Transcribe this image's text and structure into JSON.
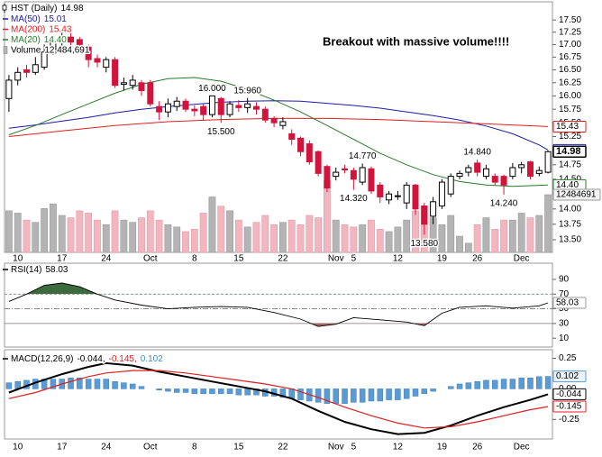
{
  "chart_data": {
    "type": "candlestick",
    "symbol_label": "HST (Daily)",
    "annotation": "Breakout with massive volume!!!!",
    "categories": [
      null,
      "10",
      null,
      null,
      null,
      null,
      "17",
      null,
      null,
      null,
      null,
      "24",
      null,
      null,
      null,
      null,
      "Oct",
      null,
      null,
      null,
      null,
      "8",
      null,
      null,
      null,
      null,
      "15",
      null,
      null,
      null,
      null,
      "22",
      null,
      null,
      null,
      null,
      null,
      "Nov",
      null,
      "5",
      null,
      null,
      null,
      null,
      "12",
      null,
      null,
      null,
      null,
      "19",
      null,
      null,
      null,
      "26",
      null,
      null,
      null,
      null,
      "Dec",
      null,
      null,
      null
    ],
    "open": [
      15.95,
      16.3,
      16.5,
      16.45,
      16.55,
      16.85,
      17.05,
      17.15,
      17.1,
      16.95,
      16.72,
      16.55,
      16.7,
      16.22,
      16.2,
      16.25,
      16.25,
      15.8,
      15.7,
      15.8,
      15.9,
      15.75,
      15.8,
      15.65,
      15.95,
      15.65,
      15.82,
      15.78,
      15.8,
      15.75,
      15.58,
      15.45,
      15.3,
      15.22,
      15.12,
      14.98,
      14.72,
      14.55,
      14.68,
      14.65,
      14.45,
      14.68,
      14.4,
      14.15,
      14.22,
      14.1,
      14.4,
      14.05,
      13.88,
      14.05,
      14.25,
      14.55,
      14.62,
      14.78,
      14.55,
      14.55,
      14.55,
      14.55,
      14.7,
      14.8,
      14.6,
      14.62
    ],
    "high": [
      16.4,
      16.55,
      16.6,
      16.75,
      17.0,
      17.15,
      17.3,
      17.25,
      17.15,
      17.0,
      16.8,
      16.75,
      16.75,
      16.35,
      16.4,
      16.3,
      16.3,
      15.9,
      15.95,
      15.98,
      15.95,
      15.82,
      15.85,
      16.0,
      15.98,
      15.9,
      15.92,
      15.96,
      15.88,
      15.8,
      15.62,
      15.6,
      15.38,
      15.25,
      15.18,
      15.0,
      14.75,
      14.7,
      14.75,
      14.7,
      14.77,
      14.72,
      14.45,
      14.3,
      14.3,
      14.45,
      14.42,
      14.1,
      14.2,
      14.5,
      14.6,
      14.65,
      14.75,
      14.84,
      14.75,
      14.6,
      14.58,
      14.78,
      14.8,
      14.82,
      14.72,
      15.0
    ],
    "low": [
      15.7,
      16.2,
      16.35,
      16.4,
      16.5,
      16.8,
      16.95,
      16.95,
      16.95,
      16.55,
      16.55,
      16.45,
      16.15,
      16.1,
      16.12,
      16.0,
      15.8,
      15.55,
      15.6,
      15.72,
      15.7,
      15.62,
      15.55,
      15.6,
      15.5,
      15.6,
      15.7,
      15.68,
      15.65,
      15.5,
      15.42,
      15.38,
      15.1,
      14.9,
      14.75,
      14.55,
      14.28,
      14.48,
      14.6,
      14.32,
      14.4,
      14.25,
      14.1,
      14.08,
      14.15,
      14.0,
      13.9,
      13.58,
      13.75,
      14.0,
      14.2,
      14.5,
      14.55,
      14.55,
      14.5,
      14.4,
      14.24,
      14.5,
      14.6,
      14.5,
      14.55,
      14.6
    ],
    "close": [
      16.3,
      16.45,
      16.45,
      16.6,
      16.85,
      17.05,
      17.15,
      17.05,
      17.0,
      16.7,
      16.65,
      16.7,
      16.2,
      16.25,
      16.3,
      16.1,
      15.85,
      15.7,
      15.85,
      15.9,
      15.75,
      15.72,
      15.65,
      16.0,
      15.65,
      15.85,
      15.78,
      15.85,
      15.75,
      15.55,
      15.5,
      15.52,
      15.2,
      14.98,
      14.8,
      14.6,
      14.35,
      14.62,
      14.66,
      14.5,
      14.7,
      14.3,
      14.2,
      14.25,
      14.22,
      14.4,
      14.0,
      13.75,
      14.12,
      14.45,
      14.55,
      14.6,
      14.7,
      14.62,
      14.68,
      14.45,
      14.4,
      14.7,
      14.75,
      14.55,
      14.65,
      14.98
    ],
    "up_color": "#000000",
    "down_color": "#d2143c",
    "log": true,
    "ylim": [
      13.3,
      17.88
    ],
    "yticks": [
      {
        "value": 13.5,
        "label": "13.50"
      },
      {
        "value": 13.75,
        "label": "13.75"
      },
      {
        "value": 14.0,
        "label": "14.00"
      },
      {
        "value": 14.25,
        "label": "14.25"
      },
      {
        "value": 14.5,
        "label": "14.50"
      },
      {
        "value": 14.75,
        "label": "14.75"
      },
      {
        "value": 15.0,
        "label": "15.00"
      },
      {
        "value": 15.25,
        "label": "15.25"
      },
      {
        "value": 15.5,
        "label": "15.50"
      },
      {
        "value": 15.75,
        "label": "15.75"
      },
      {
        "value": 16.0,
        "label": "16.00"
      },
      {
        "value": 16.25,
        "label": "16.25"
      },
      {
        "value": 16.5,
        "label": "16.50"
      },
      {
        "value": 16.75,
        "label": "16.75"
      },
      {
        "value": 17.0,
        "label": "17.00"
      },
      {
        "value": 17.25,
        "label": "17.25"
      },
      {
        "value": 17.5,
        "label": "17.50"
      }
    ],
    "moving_averages": [
      {
        "name": "MA(50)",
        "color": "#1c1ca8",
        "last_label": "15.01",
        "x": [
          0,
          3,
          6,
          9,
          12,
          15,
          18,
          21,
          24,
          27,
          30,
          33,
          36,
          39,
          42,
          45,
          48,
          51,
          54,
          57,
          60,
          61
        ],
        "values": [
          15.4,
          15.46,
          15.53,
          15.6,
          15.68,
          15.75,
          15.8,
          15.84,
          15.88,
          15.9,
          15.91,
          15.9,
          15.86,
          15.82,
          15.77,
          15.7,
          15.63,
          15.55,
          15.44,
          15.3,
          15.1,
          15.01
        ]
      },
      {
        "name": "MA(200)",
        "color": "#e02020",
        "last_label": "15.43",
        "x": [
          0,
          6,
          12,
          18,
          24,
          30,
          36,
          42,
          48,
          54,
          61
        ],
        "values": [
          15.25,
          15.35,
          15.45,
          15.52,
          15.56,
          15.58,
          15.58,
          15.56,
          15.52,
          15.48,
          15.43
        ]
      },
      {
        "name": "MA(20)",
        "color": "#2a7a2a",
        "last_label": "14.40",
        "x": [
          0,
          3,
          6,
          9,
          12,
          15,
          18,
          21,
          24,
          27,
          30,
          33,
          36,
          39,
          42,
          45,
          48,
          51,
          54,
          57,
          61
        ],
        "values": [
          15.28,
          15.45,
          15.65,
          15.85,
          16.05,
          16.22,
          16.33,
          16.35,
          16.28,
          16.12,
          15.92,
          15.7,
          15.45,
          15.2,
          14.95,
          14.75,
          14.58,
          14.46,
          14.4,
          14.38,
          14.4
        ]
      }
    ],
    "volume": {
      "name": "Volume",
      "last_label": "12,484,691",
      "ylim": [
        0,
        16000000
      ],
      "up_color": "#b4b4b4",
      "down_color": "#f2b6c0",
      "values": [
        9000000,
        8500000,
        7000000,
        6500000,
        9500000,
        10500000,
        8000000,
        7500000,
        9000000,
        8500000,
        7000000,
        6000000,
        9000000,
        7000000,
        6500000,
        7500000,
        9000000,
        7000000,
        6000000,
        5500000,
        4500000,
        5000000,
        8500000,
        12000000,
        10000000,
        9000000,
        7000000,
        5500000,
        6500000,
        8000000,
        6000000,
        6500000,
        7000000,
        6000000,
        8000000,
        7500000,
        15500000,
        7000000,
        6000000,
        5500000,
        6000000,
        7000000,
        5000000,
        4500000,
        5500000,
        7000000,
        9000000,
        10000000,
        7500000,
        6000000,
        8000000,
        3500000,
        2000000,
        6000000,
        7500000,
        5000000,
        7000000,
        7000000,
        8500000,
        7500000,
        8000000,
        12484691
      ]
    },
    "price_labels": [
      {
        "label": "16.000",
        "value": 16.0,
        "x": 23
      },
      {
        "label": "15.500",
        "value": 15.5,
        "x": 24
      },
      {
        "label": "15.960",
        "value": 15.96,
        "x": 27
      },
      {
        "label": "14.320",
        "value": 14.32,
        "x": 39
      },
      {
        "label": "14.770",
        "value": 14.77,
        "x": 40
      },
      {
        "label": "13.580",
        "value": 13.58,
        "x": 47
      },
      {
        "label": "14.840",
        "value": 14.84,
        "x": 53
      },
      {
        "label": "14.240",
        "value": 14.24,
        "x": 56
      }
    ],
    "rsi": {
      "type": "line",
      "label": "RSI(14)",
      "color": "#000000",
      "over_color": "#3d6b3d",
      "under_color": "#b06060",
      "ylim": [
        -2,
        112
      ],
      "yticks": [
        90,
        70,
        50,
        30,
        10
      ],
      "levels": [
        70,
        50,
        30
      ],
      "x": [
        0,
        2,
        4,
        6,
        8,
        10,
        12,
        15,
        18,
        21,
        24,
        27,
        30,
        33,
        35,
        37,
        39,
        42,
        45,
        47,
        49,
        51,
        54,
        57,
        60,
        61
      ],
      "values": [
        60,
        70,
        82,
        85,
        80,
        70,
        62,
        55,
        50,
        52,
        53,
        52,
        45,
        36,
        26,
        29,
        38,
        35,
        32,
        27,
        44,
        52,
        54,
        51,
        54,
        58.03
      ]
    },
    "macd": {
      "type": "line",
      "label": "MACD(12,26,9)",
      "ylim": [
        -0.41,
        0.32
      ],
      "yticks": [
        {
          "value": 0.25,
          "label": "0.25"
        },
        {
          "value": 0,
          "label": "0.00"
        },
        {
          "value": -0.25,
          "label": "-0.25"
        }
      ],
      "series": [
        {
          "color": "#000000",
          "last_label": "-0.044,",
          "x": [
            0,
            3,
            6,
            9,
            11,
            14,
            17,
            20,
            23,
            26,
            29,
            32,
            35,
            38,
            41,
            44,
            47,
            50,
            53,
            56,
            59,
            61
          ],
          "values": [
            -0.03,
            0.05,
            0.12,
            0.18,
            0.21,
            0.19,
            0.14,
            0.1,
            0.06,
            0.02,
            -0.02,
            -0.08,
            -0.18,
            -0.27,
            -0.33,
            -0.37,
            -0.36,
            -0.3,
            -0.22,
            -0.15,
            -0.09,
            -0.044
          ]
        },
        {
          "color": "#e02020",
          "last_label": "-0.145,",
          "x": [
            0,
            3,
            6,
            9,
            11,
            14,
            17,
            20,
            23,
            26,
            29,
            32,
            35,
            38,
            41,
            44,
            47,
            50,
            53,
            56,
            59,
            61
          ],
          "values": [
            -0.08,
            -0.03,
            0.04,
            0.1,
            0.13,
            0.15,
            0.15,
            0.13,
            0.1,
            0.07,
            0.04,
            0.0,
            -0.07,
            -0.15,
            -0.22,
            -0.28,
            -0.32,
            -0.31,
            -0.27,
            -0.22,
            -0.17,
            -0.145
          ]
        }
      ],
      "histogram": {
        "color": "#5b9bd5",
        "last_label": "0.102",
        "values": [
          0.05,
          0.06,
          0.07,
          0.08,
          0.08,
          0.08,
          0.08,
          0.09,
          0.09,
          0.08,
          0.08,
          0.08,
          0.06,
          0.05,
          0.04,
          0.02,
          0.0,
          -0.01,
          -0.02,
          -0.03,
          -0.03,
          -0.04,
          -0.04,
          -0.04,
          -0.04,
          -0.04,
          -0.05,
          -0.05,
          -0.05,
          -0.06,
          -0.06,
          -0.07,
          -0.08,
          -0.09,
          -0.1,
          -0.11,
          -0.12,
          -0.12,
          -0.12,
          -0.11,
          -0.11,
          -0.1,
          -0.1,
          -0.09,
          -0.09,
          -0.08,
          -0.06,
          -0.04,
          -0.02,
          0.0,
          0.02,
          0.04,
          0.05,
          0.06,
          0.07,
          0.07,
          0.08,
          0.08,
          0.09,
          0.09,
          0.1,
          0.102
        ]
      }
    }
  }
}
